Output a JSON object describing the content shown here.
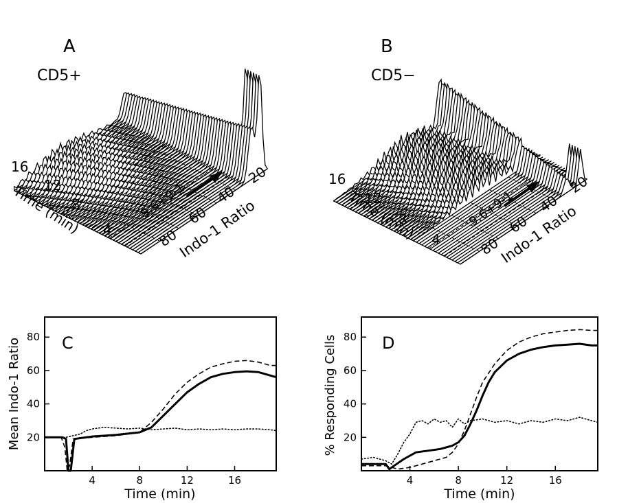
{
  "panels3d": [
    {
      "letter": "A",
      "label": "CD5+",
      "time_ticks": [
        "16",
        "12",
        "8",
        "4"
      ],
      "time_label": "Time (min)",
      "ratio_ticks": [
        "80",
        "60",
        "40",
        "20"
      ],
      "ratio_label": "Indo-1 Ratio",
      "stimulus": "9.6+9-1"
    },
    {
      "letter": "B",
      "label": "CD5−",
      "time_ticks": [
        "16",
        "12",
        "8",
        "4"
      ],
      "time_label": "Time (min)",
      "ratio_ticks": [
        "80",
        "60",
        "40",
        "20"
      ],
      "ratio_label": "Indo-1 Ratio",
      "stimulus": "9.6+9-1"
    }
  ],
  "chart_data": [
    {
      "type": "line",
      "panel": "C",
      "xlabel": "Time (min)",
      "ylabel": "Mean Indo-1 Ratio",
      "xlim": [
        0,
        19.5
      ],
      "ylim": [
        0,
        92
      ],
      "xticks": [
        4,
        8,
        12,
        16
      ],
      "yticks": [
        20,
        40,
        60,
        80
      ],
      "series": [
        {
          "style": "solid",
          "points": [
            [
              0,
              20
            ],
            [
              1.5,
              20
            ],
            [
              1.8,
              19
            ],
            [
              2.0,
              0
            ],
            [
              2.2,
              0
            ],
            [
              2.5,
              19
            ],
            [
              4,
              20.5
            ],
            [
              6,
              21.5
            ],
            [
              8,
              23
            ],
            [
              9,
              26
            ],
            [
              10,
              33
            ],
            [
              11,
              40
            ],
            [
              12,
              47
            ],
            [
              13,
              52
            ],
            [
              14,
              56
            ],
            [
              15,
              58
            ],
            [
              16,
              59
            ],
            [
              17,
              59.5
            ],
            [
              18,
              59
            ],
            [
              19,
              57
            ],
            [
              19.5,
              56
            ]
          ]
        },
        {
          "style": "dashed",
          "points": [
            [
              0,
              20
            ],
            [
              1.4,
              20
            ],
            [
              1.7,
              14
            ],
            [
              1.9,
              0
            ],
            [
              2.1,
              3
            ],
            [
              2.4,
              19
            ],
            [
              4,
              20
            ],
            [
              6,
              21
            ],
            [
              8,
              23
            ],
            [
              9,
              29
            ],
            [
              10,
              37
            ],
            [
              11,
              46
            ],
            [
              12,
              53
            ],
            [
              13,
              58
            ],
            [
              14,
              62
            ],
            [
              15,
              64
            ],
            [
              16,
              65.5
            ],
            [
              17,
              66
            ],
            [
              18,
              65
            ],
            [
              19,
              63
            ],
            [
              19.5,
              63
            ]
          ]
        },
        {
          "style": "dotted",
          "points": [
            [
              0,
              20
            ],
            [
              1.8,
              20
            ],
            [
              2.4,
              21
            ],
            [
              3,
              22
            ],
            [
              3.5,
              24
            ],
            [
              4,
              25
            ],
            [
              5,
              26
            ],
            [
              6,
              25.5
            ],
            [
              7,
              25
            ],
            [
              8,
              25.5
            ],
            [
              9,
              24.5
            ],
            [
              10,
              25
            ],
            [
              11,
              25.5
            ],
            [
              12,
              24.5
            ],
            [
              13,
              25
            ],
            [
              14,
              24.5
            ],
            [
              15,
              25
            ],
            [
              16,
              24.5
            ],
            [
              17,
              25
            ],
            [
              18,
              25
            ],
            [
              19,
              24.5
            ],
            [
              19.5,
              24
            ]
          ]
        }
      ]
    },
    {
      "type": "line",
      "panel": "D",
      "xlabel": "Time (min)",
      "ylabel": "% Responding Cells",
      "xlim": [
        0,
        19.5
      ],
      "ylim": [
        0,
        92
      ],
      "xticks": [
        4,
        8,
        12,
        16
      ],
      "yticks": [
        20,
        40,
        60,
        80
      ],
      "series": [
        {
          "style": "solid",
          "points": [
            [
              0,
              4
            ],
            [
              1.5,
              4
            ],
            [
              2.0,
              4
            ],
            [
              2.3,
              1
            ],
            [
              2.7,
              3
            ],
            [
              3.5,
              7
            ],
            [
              4.5,
              11
            ],
            [
              5.5,
              12
            ],
            [
              6.5,
              13
            ],
            [
              7.5,
              15
            ],
            [
              8,
              17
            ],
            [
              8.5,
              21
            ],
            [
              9,
              28
            ],
            [
              9.5,
              36
            ],
            [
              10,
              45
            ],
            [
              10.5,
              53
            ],
            [
              11,
              59
            ],
            [
              12,
              66
            ],
            [
              13,
              70
            ],
            [
              14,
              72.5
            ],
            [
              15,
              74
            ],
            [
              16,
              75
            ],
            [
              17,
              75.5
            ],
            [
              18,
              76
            ],
            [
              19,
              75
            ],
            [
              19.5,
              75
            ]
          ]
        },
        {
          "style": "dashed",
          "points": [
            [
              0,
              3
            ],
            [
              2,
              3
            ],
            [
              3,
              1
            ],
            [
              4,
              2
            ],
            [
              5,
              4
            ],
            [
              6,
              6
            ],
            [
              7,
              8
            ],
            [
              7.5,
              11
            ],
            [
              8,
              16
            ],
            [
              8.5,
              24
            ],
            [
              9,
              34
            ],
            [
              9.5,
              44
            ],
            [
              10,
              53
            ],
            [
              11,
              64
            ],
            [
              12,
              72
            ],
            [
              13,
              77
            ],
            [
              14,
              80
            ],
            [
              15,
              82
            ],
            [
              16,
              83
            ],
            [
              17,
              84
            ],
            [
              18,
              84.5
            ],
            [
              19,
              84
            ],
            [
              19.5,
              84
            ]
          ]
        },
        {
          "style": "dotted",
          "points": [
            [
              0,
              7
            ],
            [
              1,
              8
            ],
            [
              2,
              6
            ],
            [
              2.5,
              4
            ],
            [
              3,
              10
            ],
            [
              3.5,
              17
            ],
            [
              4,
              22
            ],
            [
              4.5,
              29
            ],
            [
              5,
              30
            ],
            [
              5.5,
              28
            ],
            [
              6,
              31
            ],
            [
              6.5,
              29
            ],
            [
              7,
              30
            ],
            [
              7.5,
              26
            ],
            [
              8,
              31
            ],
            [
              8.5,
              28
            ],
            [
              9,
              30
            ],
            [
              10,
              31
            ],
            [
              11,
              29
            ],
            [
              12,
              30
            ],
            [
              13,
              28
            ],
            [
              14,
              30
            ],
            [
              15,
              29
            ],
            [
              16,
              31
            ],
            [
              17,
              30
            ],
            [
              18,
              32
            ],
            [
              19,
              30
            ],
            [
              19.5,
              29
            ]
          ]
        }
      ]
    }
  ]
}
